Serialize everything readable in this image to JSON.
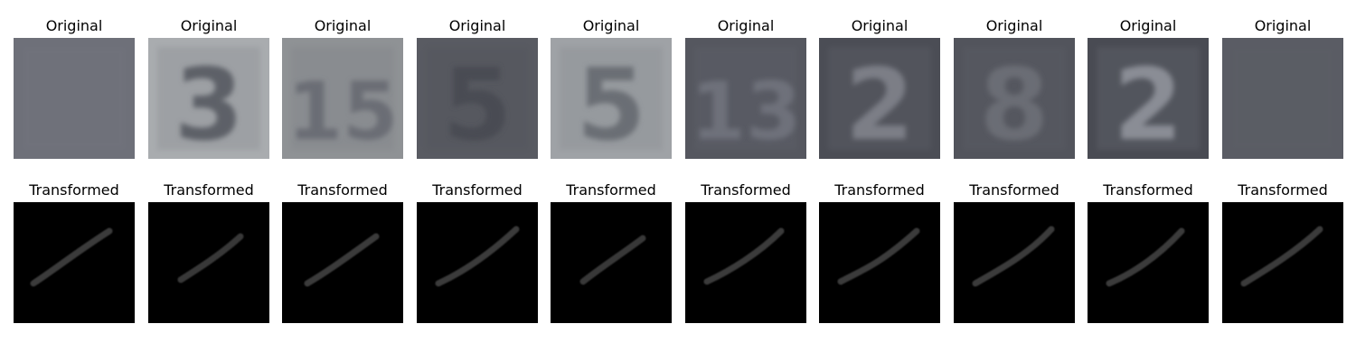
{
  "rows": [
    {
      "label": "Original",
      "items": [
        {
          "label": "Original",
          "bg": "#6e7079",
          "fg": "#7a7c86",
          "digit": ""
        },
        {
          "label": "Original",
          "bg": "#a9acaf",
          "fg": "#5d6068",
          "digit": "3"
        },
        {
          "label": "Original",
          "bg": "#8f9295",
          "fg": "#6a6d74",
          "digit": "15"
        },
        {
          "label": "Original",
          "bg": "#595b62",
          "fg": "#4a4c53",
          "digit": "5"
        },
        {
          "label": "Original",
          "bg": "#9fa2a6",
          "fg": "#6b6e75",
          "digit": "5"
        },
        {
          "label": "Original",
          "bg": "#55575f",
          "fg": "#6e717a",
          "digit": "13"
        },
        {
          "label": "Original",
          "bg": "#4b4d55",
          "fg": "#7b7e86",
          "digit": "2"
        },
        {
          "label": "Original",
          "bg": "#52545c",
          "fg": "#6b6d75",
          "digit": "8"
        },
        {
          "label": "Original",
          "bg": "#494b53",
          "fg": "#8a8d95",
          "digit": "2"
        },
        {
          "label": "Original",
          "bg": "#5a5c64",
          "fg": "#61636b",
          "digit": ""
        }
      ]
    },
    {
      "label": "Transformed",
      "items": [
        {
          "label": "Transformed",
          "bg": "#000000",
          "fg": "#3a3a3a"
        },
        {
          "label": "Transformed",
          "bg": "#000000",
          "fg": "#383838"
        },
        {
          "label": "Transformed",
          "bg": "#000000",
          "fg": "#3a3a3a"
        },
        {
          "label": "Transformed",
          "bg": "#000000",
          "fg": "#3b3b3b"
        },
        {
          "label": "Transformed",
          "bg": "#000000",
          "fg": "#373737"
        },
        {
          "label": "Transformed",
          "bg": "#000000",
          "fg": "#3a3a3a"
        },
        {
          "label": "Transformed",
          "bg": "#000000",
          "fg": "#3b3b3b"
        },
        {
          "label": "Transformed",
          "bg": "#000000",
          "fg": "#3a3a3a"
        },
        {
          "label": "Transformed",
          "bg": "#000000",
          "fg": "#3a3a3a"
        },
        {
          "label": "Transformed",
          "bg": "#000000",
          "fg": "#3a3a3a"
        }
      ]
    }
  ]
}
